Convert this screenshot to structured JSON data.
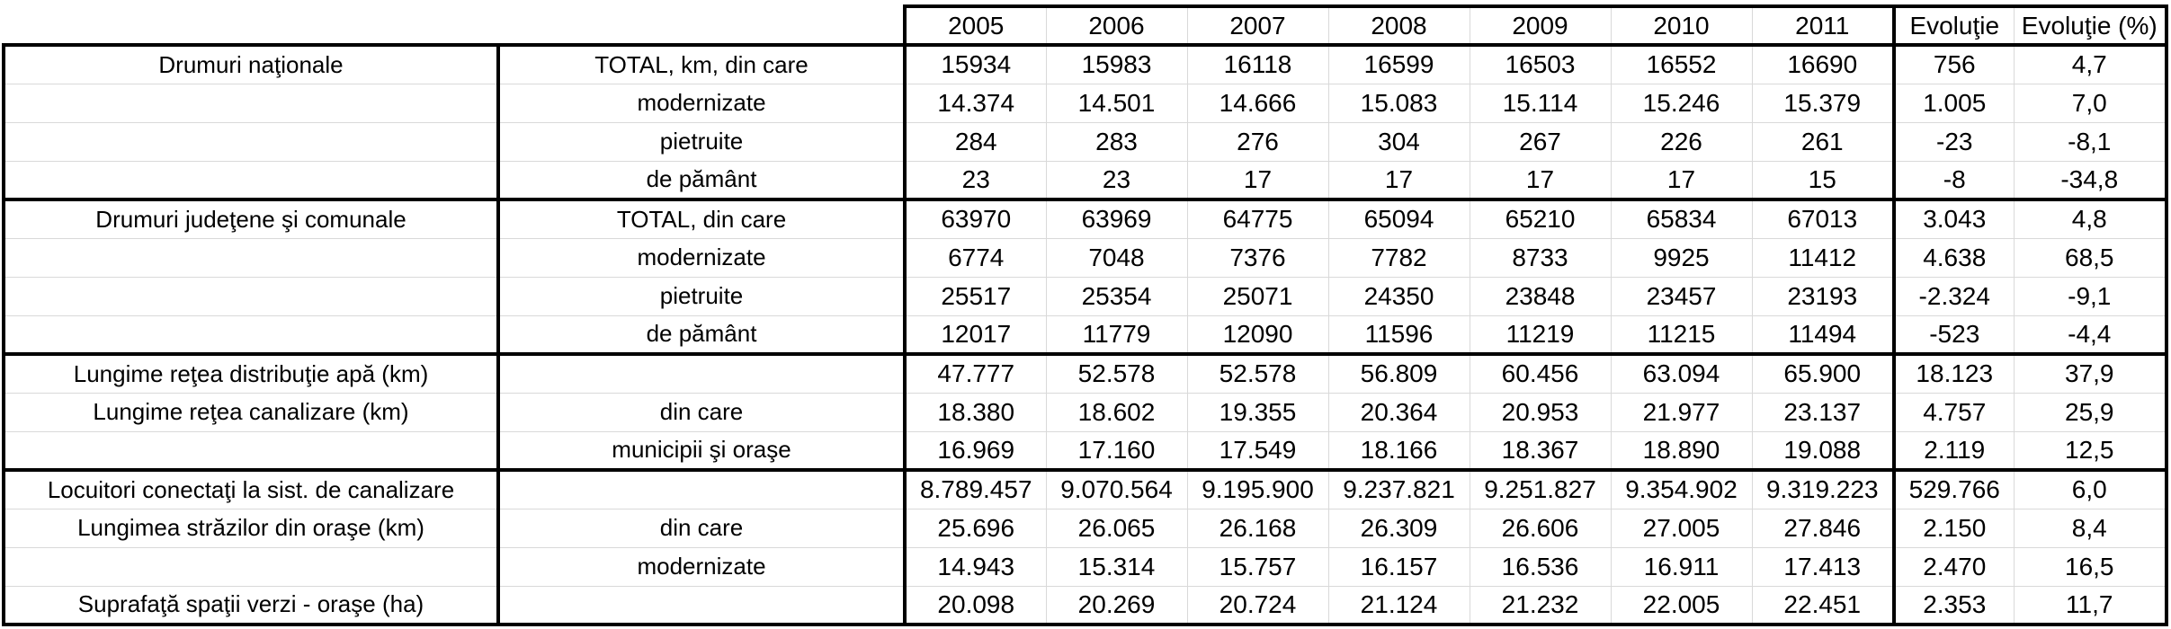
{
  "colors": {
    "border": "#000000",
    "gridline": "#d9d9d9",
    "text": "#000000",
    "background": "#ffffff"
  },
  "table": {
    "years": [
      "2005",
      "2006",
      "2007",
      "2008",
      "2009",
      "2010",
      "2011"
    ],
    "evolution_label": "Evoluţie",
    "evolution_pct_label": "Evoluţie (%)",
    "groups": [
      {
        "rows": [
          {
            "label1": "Drumuri naţionale",
            "label2": "TOTAL, km, din care",
            "values": [
              "15934",
              "15983",
              "16118",
              "16599",
              "16503",
              "16552",
              "16690"
            ],
            "evolutie": "756",
            "evolutie_pct": "4,7"
          },
          {
            "label1": "",
            "label2": "modernizate",
            "values": [
              "14.374",
              "14.501",
              "14.666",
              "15.083",
              "15.114",
              "15.246",
              "15.379"
            ],
            "evolutie": "1.005",
            "evolutie_pct": "7,0"
          },
          {
            "label1": "",
            "label2": "pietruite",
            "values": [
              "284",
              "283",
              "276",
              "304",
              "267",
              "226",
              "261"
            ],
            "evolutie": "-23",
            "evolutie_pct": "-8,1"
          },
          {
            "label1": "",
            "label2": "de pământ",
            "values": [
              "23",
              "23",
              "17",
              "17",
              "17",
              "17",
              "15"
            ],
            "evolutie": "-8",
            "evolutie_pct": "-34,8"
          }
        ]
      },
      {
        "rows": [
          {
            "label1": "Drumuri judeţene şi comunale",
            "label2": "TOTAL, din care",
            "values": [
              "63970",
              "63969",
              "64775",
              "65094",
              "65210",
              "65834",
              "67013"
            ],
            "evolutie": "3.043",
            "evolutie_pct": "4,8"
          },
          {
            "label1": "",
            "label2": "modernizate",
            "values": [
              "6774",
              "7048",
              "7376",
              "7782",
              "8733",
              "9925",
              "11412"
            ],
            "evolutie": "4.638",
            "evolutie_pct": "68,5"
          },
          {
            "label1": "",
            "label2": "pietruite",
            "values": [
              "25517",
              "25354",
              "25071",
              "24350",
              "23848",
              "23457",
              "23193"
            ],
            "evolutie": "-2.324",
            "evolutie_pct": "-9,1"
          },
          {
            "label1": "",
            "label2": "de pământ",
            "values": [
              "12017",
              "11779",
              "12090",
              "11596",
              "11219",
              "11215",
              "11494"
            ],
            "evolutie": "-523",
            "evolutie_pct": "-4,4"
          }
        ]
      },
      {
        "rows": [
          {
            "label1": "Lungime reţea distribuţie apă (km)",
            "label2": "",
            "values": [
              "47.777",
              "52.578",
              "52.578",
              "56.809",
              "60.456",
              "63.094",
              "65.900"
            ],
            "evolutie": "18.123",
            "evolutie_pct": "37,9"
          },
          {
            "label1": "Lungime reţea canalizare (km)",
            "label2": "din care",
            "values": [
              "18.380",
              "18.602",
              "19.355",
              "20.364",
              "20.953",
              "21.977",
              "23.137"
            ],
            "evolutie": "4.757",
            "evolutie_pct": "25,9"
          },
          {
            "label1": "",
            "label2": "municipii şi oraşe",
            "values": [
              "16.969",
              "17.160",
              "17.549",
              "18.166",
              "18.367",
              "18.890",
              "19.088"
            ],
            "evolutie": "2.119",
            "evolutie_pct": "12,5"
          }
        ]
      },
      {
        "rows": [
          {
            "label1": "Locuitori conectaţi la sist. de canalizare",
            "label2": "",
            "values": [
              "8.789.457",
              "9.070.564",
              "9.195.900",
              "9.237.821",
              "9.251.827",
              "9.354.902",
              "9.319.223"
            ],
            "evolutie": "529.766",
            "evolutie_pct": "6,0"
          },
          {
            "label1": "Lungimea străzilor din oraşe (km)",
            "label2": "din care",
            "values": [
              "25.696",
              "26.065",
              "26.168",
              "26.309",
              "26.606",
              "27.005",
              "27.846"
            ],
            "evolutie": "2.150",
            "evolutie_pct": "8,4"
          },
          {
            "label1": "",
            "label2": "modernizate",
            "values": [
              "14.943",
              "15.314",
              "15.757",
              "16.157",
              "16.536",
              "16.911",
              "17.413"
            ],
            "evolutie": "2.470",
            "evolutie_pct": "16,5"
          },
          {
            "label1": "Suprafaţă spaţii verzi - oraşe (ha)",
            "label2": "",
            "values": [
              "20.098",
              "20.269",
              "20.724",
              "21.124",
              "21.232",
              "22.005",
              "22.451"
            ],
            "evolutie": "2.353",
            "evolutie_pct": "11,7"
          }
        ]
      }
    ]
  }
}
